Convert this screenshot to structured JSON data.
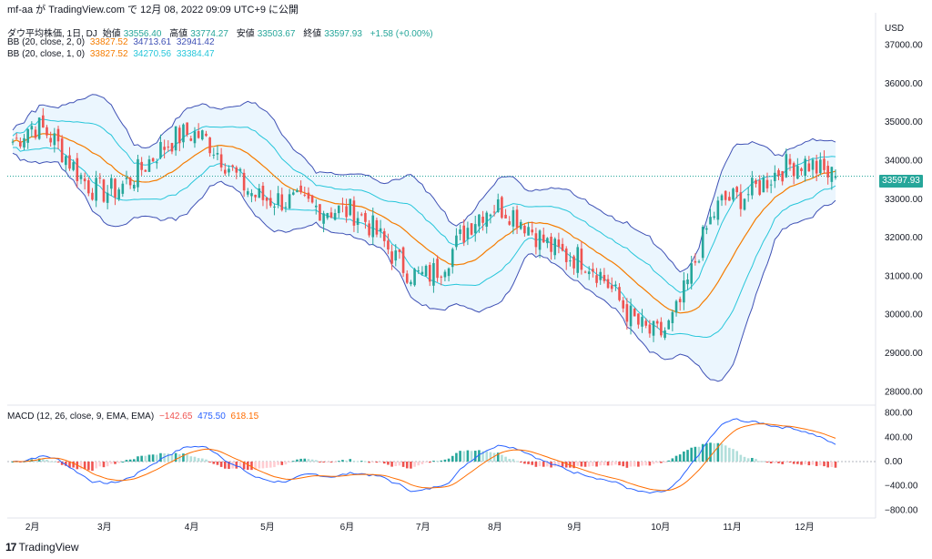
{
  "header": {
    "title": "mf-aa が TradingView.com で 12月 08, 2022 09:09 UTC+9 に公開"
  },
  "legend": {
    "symbol": "ダウ平均株価, 1日, DJ",
    "open_label": "始値",
    "open": "33556.40",
    "high_label": "高値",
    "high": "33774.27",
    "low_label": "安値",
    "low": "33503.67",
    "close_label": "終値",
    "close": "33597.93",
    "change": "+1.58 (+0.00%)",
    "bb1": {
      "label": "BB (20, close, 2, 0)",
      "basis": "33827.52",
      "upper": "34713.61",
      "lower": "32941.42"
    },
    "bb2": {
      "label": "BB (20, close, 1, 0)",
      "basis": "33827.52",
      "upper": "34270.56",
      "lower": "33384.47"
    },
    "macd": {
      "label": "MACD (12, 26, close, 9, EMA, EMA)",
      "hist": "−142.65",
      "macd": "475.50",
      "signal": "618.15"
    }
  },
  "price_axis": {
    "currency": "USD",
    "last_price": "33597.93"
  },
  "footer": {
    "brand": "TradingView"
  },
  "colors": {
    "up": "#26a69a",
    "down": "#ef5350",
    "basis": "#f57c00",
    "bb2_band": "#26c6da",
    "bb1_band": "#3f51b5",
    "fill": "#e3f2fd",
    "macd": "#2962ff",
    "signal": "#ff6d00",
    "hist_up_strong": "#26a69a",
    "hist_up_weak": "#b2dfdb",
    "hist_down_strong": "#ef5350",
    "hist_down_weak": "#ffcdd2"
  },
  "chart_data": [
    {
      "type": "candlestick",
      "title": "ダウ平均株価, 1日, DJ",
      "x_tick_labels": [
        "2月",
        "3月",
        "4月",
        "5月",
        "6月",
        "7月",
        "8月",
        "9月",
        "10月",
        "11月",
        "12月"
      ],
      "y_tick_labels": [
        "28000.00",
        "29000.00",
        "30000.00",
        "31000.00",
        "32000.00",
        "33000.00",
        "34000.00",
        "35000.00",
        "36000.00",
        "37000.00"
      ],
      "ylim": [
        27700,
        37700
      ],
      "approx_close_by_month": [
        {
          "month": "2月",
          "close": 34900
        },
        {
          "month": "3月",
          "close": 33200
        },
        {
          "month": "4月",
          "close": 34700
        },
        {
          "month": "5月",
          "close": 33000
        },
        {
          "month": "6月",
          "close": 32700
        },
        {
          "month": "7月",
          "close": 31000
        },
        {
          "month": "8月",
          "close": 32800
        },
        {
          "month": "9月",
          "close": 31500
        },
        {
          "month": "10月",
          "close": 29500
        },
        {
          "month": "11月",
          "close": 33000
        },
        {
          "month": "12月",
          "close": 33950
        }
      ],
      "last": {
        "open": 33556.4,
        "high": 33774.27,
        "low": 33503.67,
        "close": 33597.93
      },
      "bands": {
        "bb_2sd": {
          "basis": 33827.52,
          "upper": 34713.61,
          "lower": 32941.42
        },
        "bb_1sd": {
          "basis": 33827.52,
          "upper": 34270.56,
          "lower": 33384.47
        }
      }
    },
    {
      "type": "macd",
      "title": "MACD (12, 26, close, 9, EMA, EMA)",
      "y_tick_labels": [
        "800.00",
        "400.00",
        "0.00",
        "−400.00",
        "−800.00"
      ],
      "ylim": [
        -900,
        900
      ],
      "last": {
        "histogram": -142.65,
        "macd": 475.5,
        "signal": 618.15
      }
    }
  ]
}
